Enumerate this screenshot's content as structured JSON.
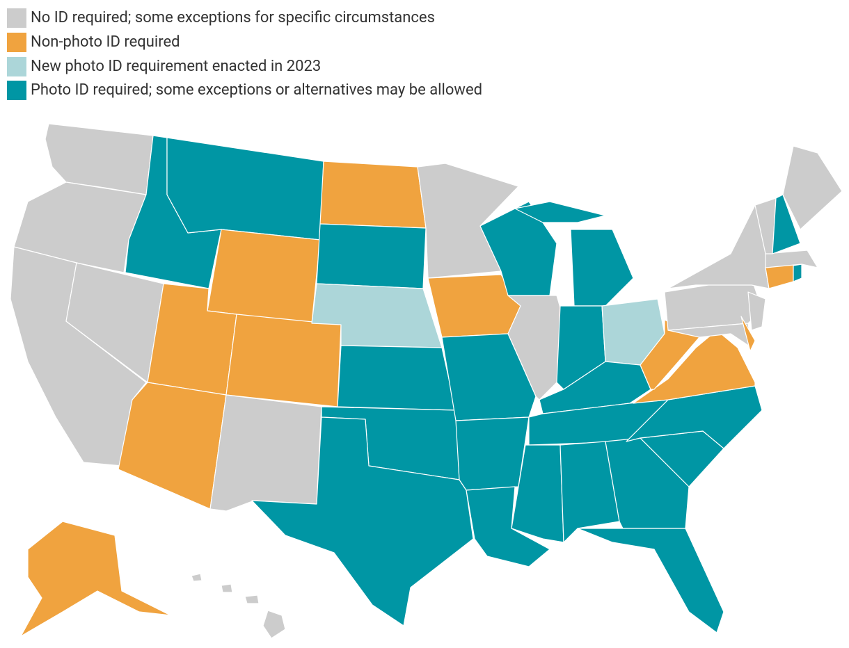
{
  "legend": {
    "items": [
      {
        "label": "No ID required; some exceptions for specific circumstances",
        "color": "#cccccc"
      },
      {
        "label": "Non-photo ID required",
        "color": "#f0a33f"
      },
      {
        "label": "New photo ID requirement enacted in 2023",
        "color": "#acd6d9"
      },
      {
        "label": "Photo ID required; some exceptions or alternatives may be allowed",
        "color": "#0096a4"
      }
    ]
  }
}
